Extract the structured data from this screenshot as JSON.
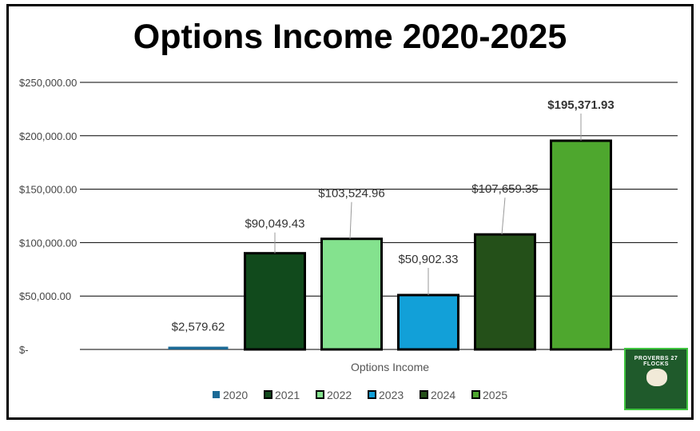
{
  "chart_data": {
    "type": "bar",
    "title": "Options Income 2020-2025",
    "xlabel": "Options Income",
    "ylabel": "",
    "ylim": [
      0,
      250000
    ],
    "yticks": [
      0,
      50000,
      100000,
      150000,
      200000,
      250000
    ],
    "ytick_labels": [
      "$-",
      "$50,000.00",
      "$100,000.00",
      "$150,000.00",
      "$200,000.00",
      "$250,000.00"
    ],
    "grid": true,
    "legend_position": "bottom",
    "categories": [
      "Options Income"
    ],
    "series": [
      {
        "name": "2020",
        "values": [
          2579.62
        ],
        "label": "$2,579.62",
        "color": "#1b6a96",
        "border": "none"
      },
      {
        "name": "2021",
        "values": [
          90049.43
        ],
        "label": "$90,049.43",
        "color": "#114a1c",
        "border": "#000"
      },
      {
        "name": "2022",
        "values": [
          103524.96
        ],
        "label": "$103,524.96",
        "color": "#84e28e",
        "border": "#000"
      },
      {
        "name": "2023",
        "values": [
          50902.33
        ],
        "label": "$50,902.33",
        "color": "#12a0d8",
        "border": "#000"
      },
      {
        "name": "2024",
        "values": [
          107659.35
        ],
        "label": "$107,659.35",
        "color": "#245019",
        "border": "#000"
      },
      {
        "name": "2025",
        "values": [
          195371.93
        ],
        "label": "$195,371.93",
        "color": "#4ea72e",
        "border": "#000",
        "bold": true
      }
    ]
  },
  "logo": {
    "text": "PROVERBS 27 FLOCKS"
  }
}
